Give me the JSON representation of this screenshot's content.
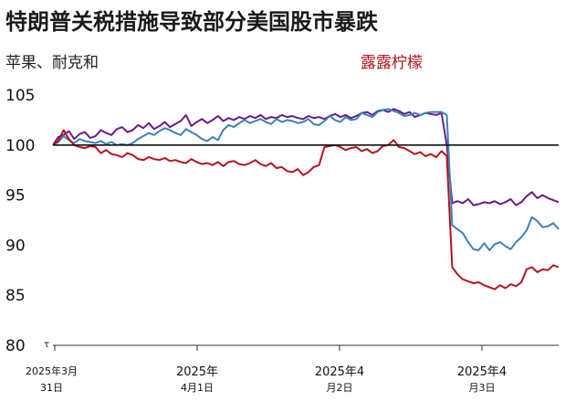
{
  "chart_data": {
    "type": "line",
    "title": "特朗普关税措施导致部分美国股市暴跌",
    "legend_left": "苹果、耐克和",
    "legend_right": "露露柠檬",
    "ylim": [
      80,
      105
    ],
    "yticks": [
      "105",
      "100",
      "95",
      "90",
      "85",
      "80"
    ],
    "y_axis_marker": "τ",
    "baseline": 100,
    "x_tick_labels": [
      {
        "line1": "2025年3月",
        "line2": "31日"
      },
      {
        "line1": "2025年",
        "line2": "4月1日"
      },
      {
        "line1": "2025年4",
        "line2": "月2日"
      },
      {
        "line1": "2025年4",
        "line2": "月3日"
      }
    ],
    "series": [
      {
        "color": "#6a1b8a",
        "values": [
          100,
          100.8,
          101.0,
          101.4,
          100.6,
          101.1,
          101.3,
          100.7,
          100.9,
          101.5,
          101.2,
          101.0,
          101.6,
          101.8,
          101.3,
          101.5,
          102.0,
          101.7,
          102.2,
          101.6,
          101.9,
          102.3,
          101.8,
          102.1,
          102.4,
          103.0,
          101.9,
          102.3,
          102.6,
          102.2,
          102.5,
          102.9,
          102.4,
          102.7,
          102.5,
          102.8,
          102.6,
          102.9,
          102.7,
          103.0,
          102.6,
          102.8,
          102.7,
          103.0,
          102.8,
          102.9,
          102.7,
          102.6,
          102.9,
          102.7,
          102.8,
          102.6,
          102.9,
          103.1,
          102.8,
          103.0,
          102.7,
          102.9,
          103.2,
          103.3,
          103.0,
          103.4,
          103.5,
          103.3,
          103.6,
          103.4,
          103.1,
          103.3,
          102.8,
          103.0,
          103.2,
          103.1,
          103.0,
          103.2,
          100.0,
          94.2,
          94.4,
          94.2,
          94.6,
          94.0,
          94.1,
          94.3,
          94.2,
          94.4,
          94.1,
          94.3,
          94.6,
          94.0,
          94.3,
          94.9,
          95.3,
          94.7,
          95.0,
          94.7,
          94.5,
          94.3
        ]
      },
      {
        "color": "#3b83b5",
        "values": [
          100,
          100.3,
          100.9,
          100.5,
          100.2,
          100.6,
          100.4,
          100.3,
          100.2,
          100.4,
          100.1,
          100.3,
          100.0,
          100.1,
          100.0,
          100.2,
          100.6,
          100.9,
          101.2,
          101.0,
          101.4,
          101.7,
          101.5,
          101.2,
          101.0,
          101.6,
          101.3,
          101.0,
          100.6,
          100.4,
          100.8,
          100.5,
          101.5,
          102.0,
          101.8,
          102.2,
          102.5,
          102.2,
          102.4,
          102.6,
          102.3,
          102.1,
          102.6,
          102.3,
          102.5,
          102.4,
          102.2,
          102.3,
          102.6,
          102.1,
          102.0,
          102.4,
          102.9,
          102.5,
          102.3,
          102.8,
          102.5,
          102.6,
          103.2,
          103.0,
          102.8,
          103.3,
          103.5,
          103.6,
          103.4,
          103.2,
          102.9,
          103.0,
          103.2,
          103.0,
          103.2,
          103.3,
          103.3,
          103.3,
          103.0,
          92.0,
          91.6,
          91.2,
          90.3,
          89.6,
          89.5,
          90.2,
          89.5,
          90.1,
          90.3,
          89.9,
          89.6,
          90.3,
          90.8,
          91.5,
          92.8,
          92.4,
          91.8,
          91.9,
          92.2,
          91.6
        ]
      },
      {
        "color": "#b3151b",
        "values": [
          100,
          100.4,
          101.5,
          100.6,
          100.0,
          99.8,
          99.7,
          99.9,
          99.8,
          99.2,
          99.5,
          99.1,
          99.0,
          98.8,
          99.2,
          99.0,
          98.6,
          98.5,
          98.8,
          98.6,
          98.5,
          98.7,
          98.4,
          98.5,
          98.3,
          98.2,
          98.6,
          98.3,
          98.1,
          98.2,
          98.0,
          98.3,
          97.9,
          98.3,
          98.4,
          98.1,
          98.0,
          98.2,
          98.5,
          98.1,
          97.9,
          98.2,
          97.7,
          97.8,
          97.4,
          97.3,
          97.6,
          97.0,
          97.3,
          97.8,
          98.0,
          99.8,
          99.9,
          100.0,
          99.8,
          99.5,
          99.7,
          99.8,
          99.4,
          99.6,
          99.2,
          99.4,
          99.9,
          100.0,
          100.5,
          99.8,
          99.7,
          99.4,
          99.1,
          99.3,
          98.9,
          99.1,
          98.8,
          99.4,
          98.9,
          87.8,
          87.1,
          86.6,
          86.4,
          86.2,
          86.3,
          86.0,
          85.8,
          85.6,
          86.0,
          85.7,
          86.1,
          85.9,
          86.3,
          87.6,
          87.8,
          87.3,
          87.6,
          87.5,
          88.0,
          87.8
        ]
      }
    ],
    "grid": false
  }
}
